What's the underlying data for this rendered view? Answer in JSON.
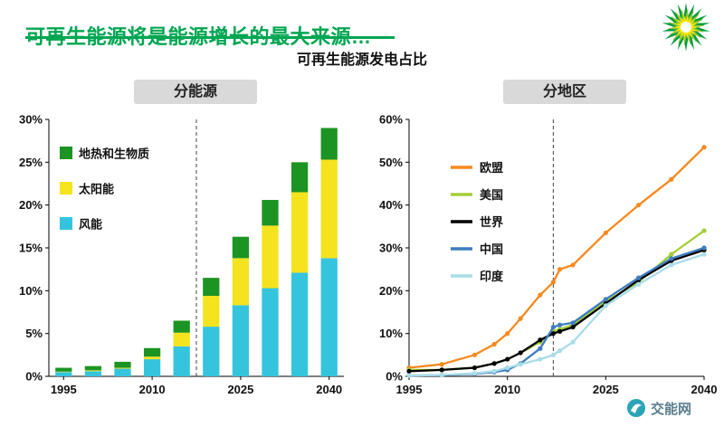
{
  "page": {
    "title": "可再生能源将是能源增长的最大来源…",
    "subtitle": "可再生能源发电占比",
    "watermark": "交能网",
    "logo": "bp-helios-logo",
    "accent_color": "#00a651"
  },
  "panels": {
    "left_header": "分能源",
    "right_header": "分地区"
  },
  "chart_data": [
    {
      "type": "bar",
      "stacked": true,
      "title": "分能源",
      "categories": [
        1995,
        2000,
        2005,
        2010,
        2015,
        2020,
        2025,
        2030,
        2035,
        2040
      ],
      "series": [
        {
          "name": "风能",
          "color": "#35c4dd",
          "values": [
            0.5,
            0.6,
            0.9,
            2.0,
            3.5,
            5.8,
            8.3,
            10.3,
            12.1,
            13.8
          ]
        },
        {
          "name": "太阳能",
          "color": "#f5e31e",
          "values": [
            0.05,
            0.1,
            0.1,
            0.3,
            1.6,
            3.6,
            5.5,
            7.3,
            9.4,
            11.5
          ]
        },
        {
          "name": "地热和生物质",
          "color": "#1c9423",
          "values": [
            0.45,
            0.5,
            0.7,
            1.0,
            1.4,
            2.1,
            2.5,
            3.0,
            3.5,
            3.7
          ]
        }
      ],
      "legend_order": [
        "地热和生物质",
        "太阳能",
        "风能"
      ],
      "xticks": [
        1995,
        2010,
        2025,
        2040
      ],
      "ylim": [
        0,
        30
      ],
      "ytick_step": 5,
      "ytick_suffix": "%",
      "divider_x": 2017.5,
      "grid": false,
      "legend_position": "upper-left-inside"
    },
    {
      "type": "line",
      "title": "分地区",
      "x": [
        1995,
        2000,
        2005,
        2008,
        2010,
        2012,
        2015,
        2017,
        2018,
        2020,
        2025,
        2030,
        2035,
        2040
      ],
      "series": [
        {
          "name": "欧盟",
          "color": "#f5891f",
          "values": [
            2.0,
            2.8,
            5.0,
            7.5,
            10.0,
            13.5,
            19.0,
            22.0,
            25.0,
            26.0,
            33.5,
            40.0,
            46.0,
            53.5
          ]
        },
        {
          "name": "美国",
          "color": "#a6ce39",
          "values": [
            1.5,
            1.5,
            2.0,
            3.0,
            4.0,
            5.5,
            8.0,
            10.5,
            11.0,
            12.0,
            17.5,
            22.0,
            28.5,
            34.0
          ]
        },
        {
          "name": "世界",
          "color": "#000000",
          "values": [
            1.2,
            1.5,
            2.0,
            3.0,
            4.0,
            5.5,
            8.5,
            10.0,
            10.5,
            11.5,
            17.0,
            22.5,
            27.0,
            29.5
          ]
        },
        {
          "name": "中国",
          "color": "#3e7dbf",
          "values": [
            0.2,
            0.3,
            0.6,
            1.0,
            1.5,
            3.0,
            6.5,
            11.5,
            12.0,
            12.5,
            18.0,
            23.0,
            27.5,
            30.0
          ]
        },
        {
          "name": "印度",
          "color": "#a8dce8",
          "values": [
            0.2,
            0.3,
            0.7,
            1.2,
            2.0,
            2.8,
            4.0,
            5.0,
            6.0,
            8.0,
            16.5,
            21.5,
            26.0,
            28.5
          ]
        }
      ],
      "xticks": [
        1995,
        2010,
        2025,
        2040
      ],
      "ylim": [
        0,
        60
      ],
      "ytick_step": 10,
      "ytick_suffix": "%",
      "divider_x": 2017,
      "grid": false,
      "legend_position": "upper-left-inside"
    }
  ]
}
